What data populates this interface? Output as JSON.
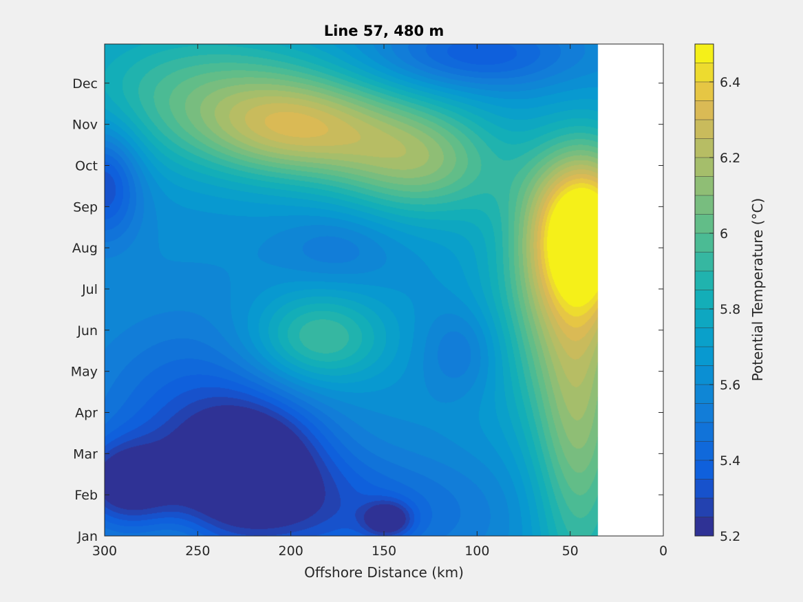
{
  "chart_data": {
    "type": "heatmap",
    "subtype": "filled-contour",
    "title": "Line 57, 480 m",
    "xlabel": "Offshore Distance (km)",
    "ylabel": "",
    "x_direction": "reversed",
    "xlim": [
      0,
      300
    ],
    "xticks": [
      300,
      250,
      200,
      150,
      100,
      50,
      0
    ],
    "ylim": [
      1,
      12.95
    ],
    "yticks": [
      {
        "value": 1,
        "label": "Jan"
      },
      {
        "value": 2,
        "label": "Feb"
      },
      {
        "value": 3,
        "label": "Mar"
      },
      {
        "value": 4,
        "label": "Apr"
      },
      {
        "value": 5,
        "label": "May"
      },
      {
        "value": 6,
        "label": "Jun"
      },
      {
        "value": 7,
        "label": "Jul"
      },
      {
        "value": 8,
        "label": "Aug"
      },
      {
        "value": 9,
        "label": "Sep"
      },
      {
        "value": 10,
        "label": "Oct"
      },
      {
        "value": 11,
        "label": "Nov"
      },
      {
        "value": 12,
        "label": "Dec"
      }
    ],
    "data_x_range_km": [
      35,
      300
    ],
    "colorbar": {
      "label": "Potential Temperature (°C)",
      "range": [
        5.2,
        6.5
      ],
      "level_step": 0.05,
      "ticks": [
        5.2,
        5.4,
        5.6,
        5.8,
        6,
        6.2,
        6.4
      ],
      "tick_labels": [
        "5.2",
        "5.4",
        "5.6",
        "5.8",
        "6",
        "6.2",
        "6.4"
      ]
    },
    "base_value": 5.62,
    "features": [
      {
        "x": 300,
        "y": 9.6,
        "value": 5.28,
        "sx": 14,
        "sy": 1.0
      },
      {
        "x": 290,
        "y": 2.3,
        "value": 5.27,
        "sx": 18,
        "sy": 0.7
      },
      {
        "x": 220,
        "y": 2.8,
        "value": 5.22,
        "sx": 26,
        "sy": 1.0
      },
      {
        "x": 250,
        "y": 3.6,
        "value": 5.35,
        "sx": 40,
        "sy": 1.8
      },
      {
        "x": 180,
        "y": 1.6,
        "value": 5.37,
        "sx": 60,
        "sy": 1.0
      },
      {
        "x": 148,
        "y": 1.4,
        "value": 5.31,
        "sx": 9,
        "sy": 0.3
      },
      {
        "x": 262,
        "y": 0.9,
        "value": 5.7,
        "sx": 14,
        "sy": 0.5
      },
      {
        "x": 185,
        "y": 5.8,
        "value": 5.98,
        "sx": 26,
        "sy": 0.8
      },
      {
        "x": 108,
        "y": 5.5,
        "value": 5.45,
        "sx": 15,
        "sy": 0.8
      },
      {
        "x": 175,
        "y": 8.0,
        "value": 5.5,
        "sx": 22,
        "sy": 0.6
      },
      {
        "x": 195,
        "y": 10.9,
        "value": 6.15,
        "sx": 38,
        "sy": 0.9
      },
      {
        "x": 130,
        "y": 10.1,
        "value": 6.07,
        "sx": 32,
        "sy": 1.0
      },
      {
        "x": 250,
        "y": 11.8,
        "value": 5.95,
        "sx": 50,
        "sy": 1.2
      },
      {
        "x": 100,
        "y": 12.7,
        "value": 5.35,
        "sx": 38,
        "sy": 0.6
      },
      {
        "x": 42,
        "y": 8.5,
        "value": 6.48,
        "sx": 22,
        "sy": 1.4
      },
      {
        "x": 45,
        "y": 3.5,
        "value": 6.05,
        "sx": 18,
        "sy": 3.0
      },
      {
        "x": 60,
        "y": 6.5,
        "value": 5.9,
        "sx": 30,
        "sy": 2.0
      }
    ]
  }
}
